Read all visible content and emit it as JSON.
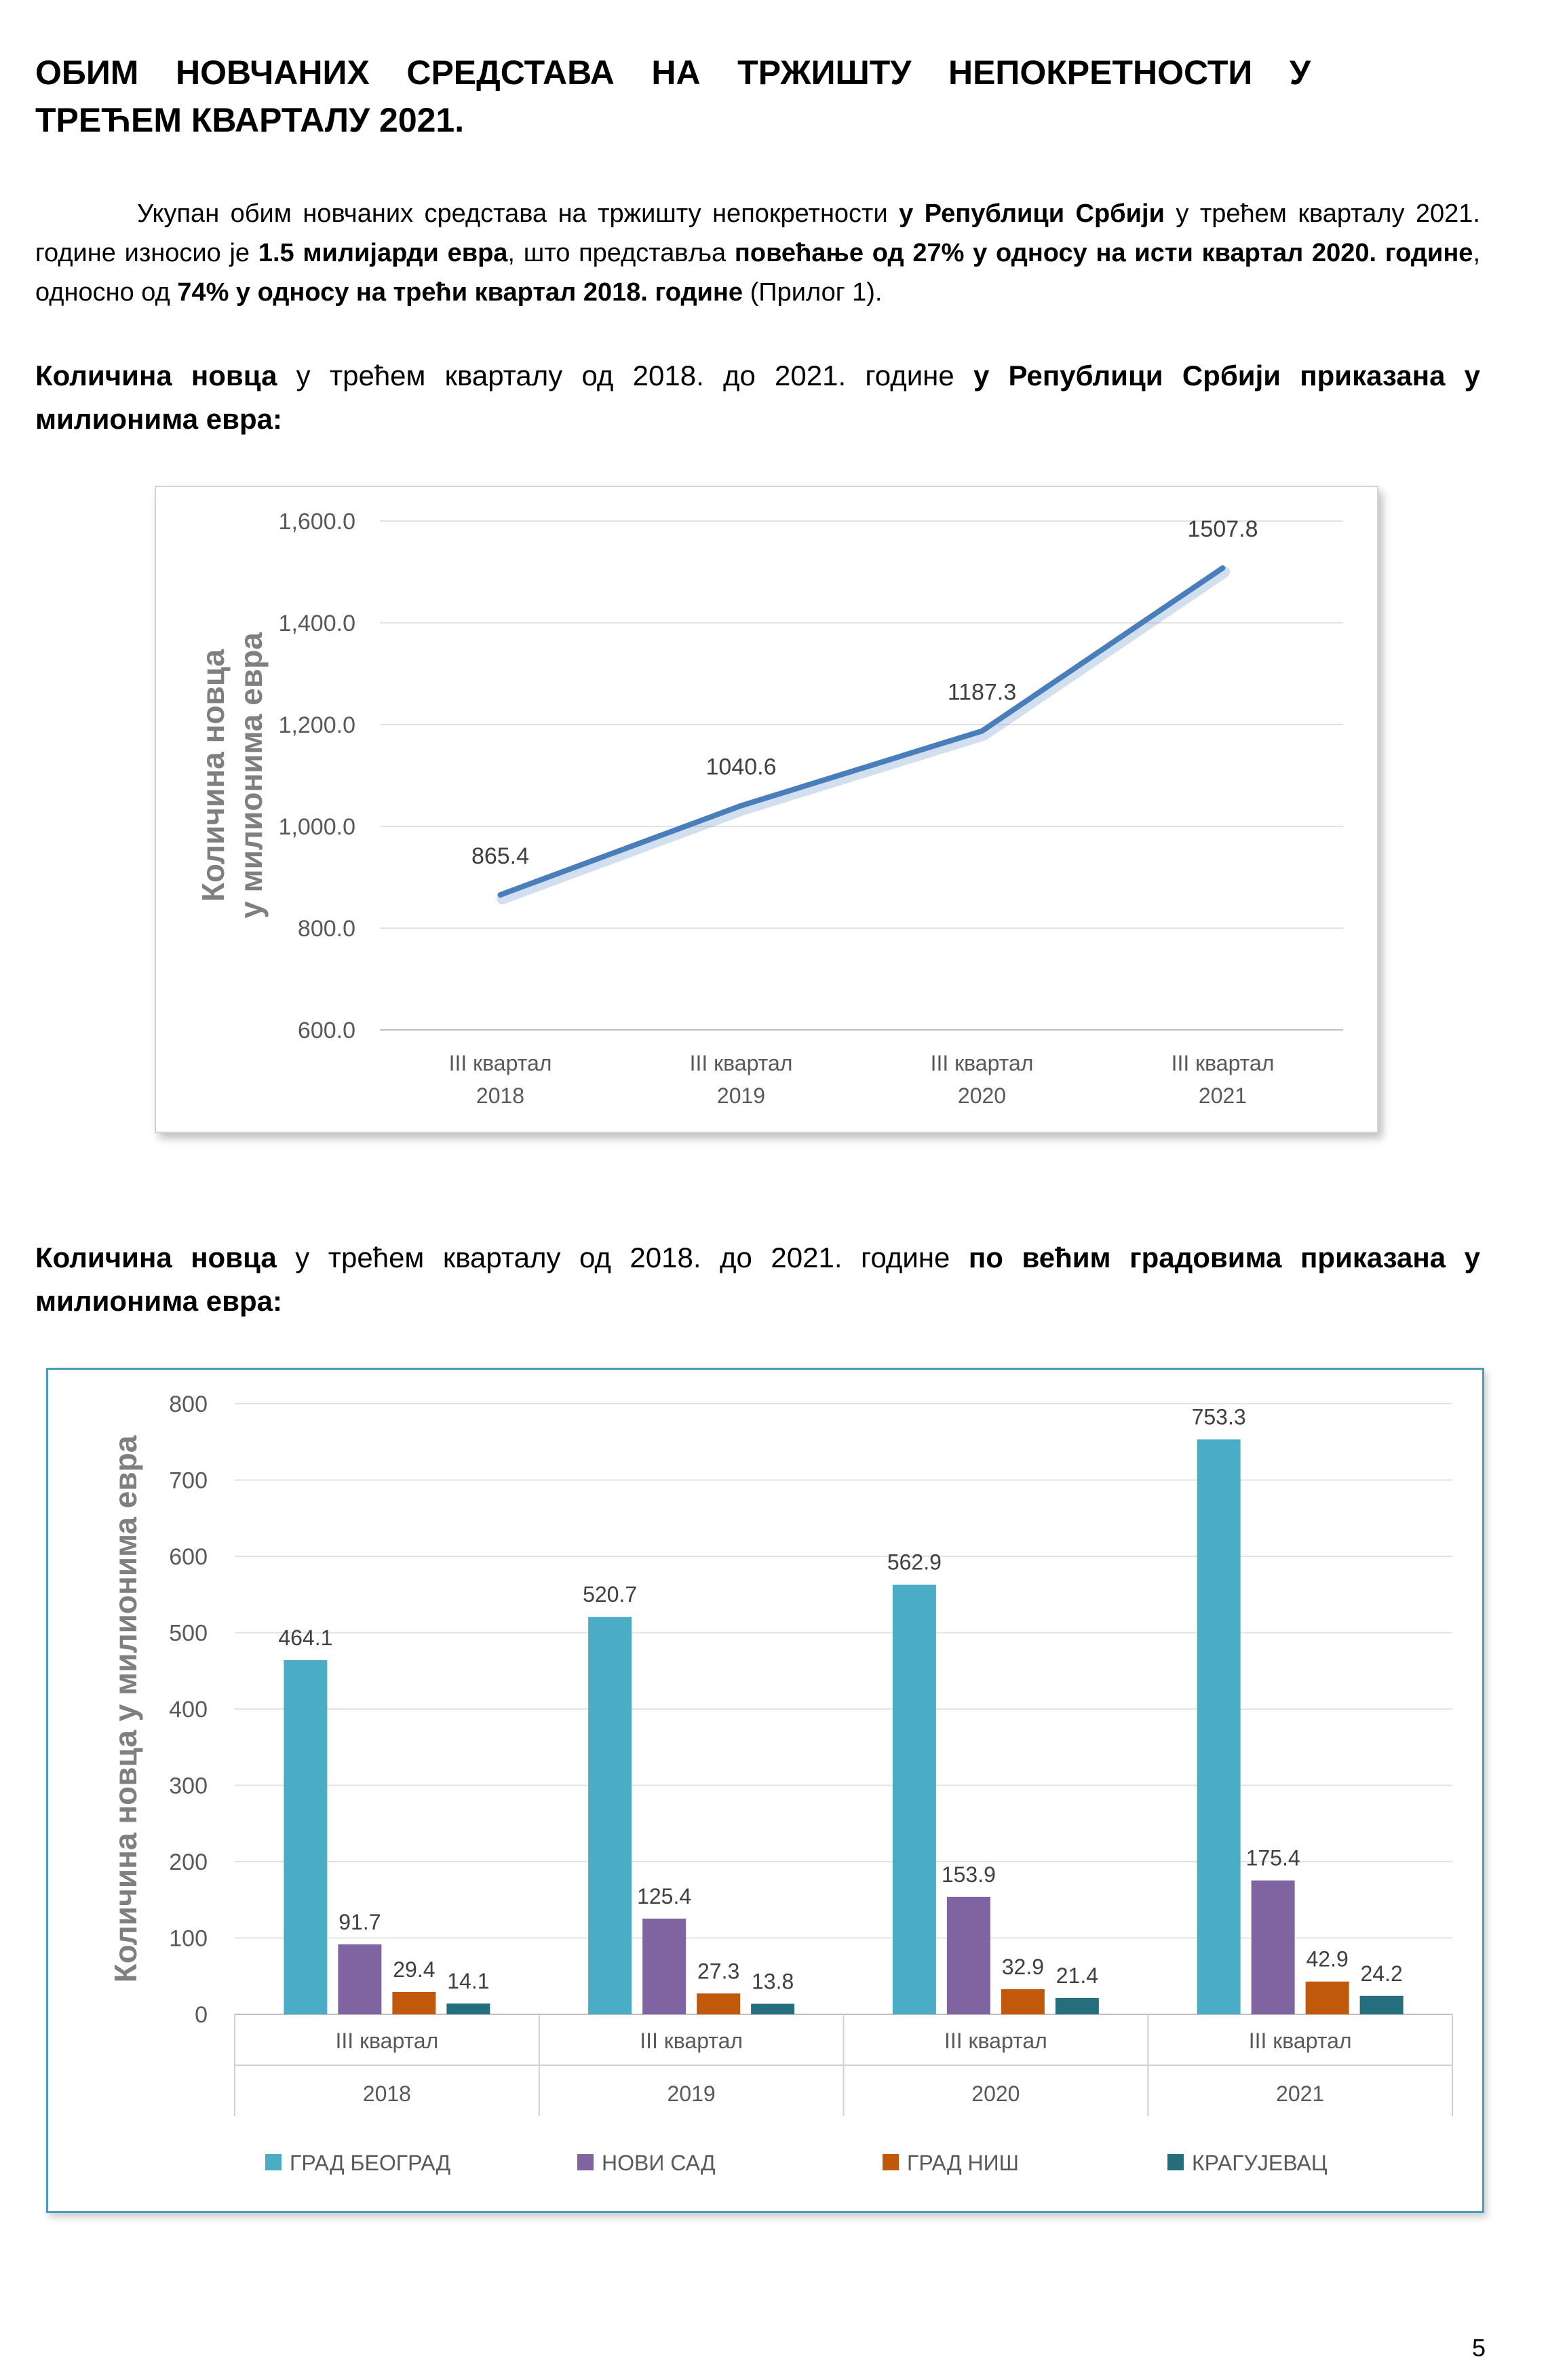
{
  "heading": {
    "line1": "ОБИМ НОВЧАНИХ СРЕДСТАВА НА ТРЖИШТУ НЕПОКРЕТНОСТИ У",
    "line2": "ТРЕЋЕМ КВАРТАЛУ 2021."
  },
  "paragraph1": {
    "t1": "Укупан обим новчаних средстава на тржишту непокретности ",
    "b1": "у Републици Србији",
    "t2": " у трећем кварталу 2021. године износио је ",
    "b2": "1.5 милијарди евра",
    "t3": ", што представља ",
    "b3": "повећање од 27% у односу на исти квартал 2020. године",
    "t4": ", односно од ",
    "b4": "74% у односу на трећи квартал 2018. године",
    "t5": " (Прилог 1)."
  },
  "paragraph2": {
    "b1": "Количина новца",
    "t1": " у трећем кварталу од 2018. до 2021. године ",
    "b2": "у Републици Србији приказана у милионима евра:"
  },
  "paragraph3": {
    "b1": "Количина новца",
    "t1": " у трећем кварталу од 2018. до 2021. године ",
    "b2": "по већим градовима приказана у милионима евра:"
  },
  "chart_data": [
    {
      "type": "line",
      "ylabel_line1": "Количина новца",
      "ylabel_line2": "у милионима евра",
      "categories": [
        [
          "III квартал",
          "2018"
        ],
        [
          "III квартал",
          "2019"
        ],
        [
          "III квартал",
          "2020"
        ],
        [
          "III квартал",
          "2021"
        ]
      ],
      "values": [
        865.4,
        1040.6,
        1187.3,
        1507.8
      ],
      "value_labels": [
        "865.4",
        "1040.6",
        "1187.3",
        "1507.8"
      ],
      "ylim": [
        600,
        1600
      ],
      "yticks": [
        "600.0",
        "800.0",
        "1,000.0",
        "1,200.0",
        "1,400.0",
        "1,600.0"
      ],
      "grid": true,
      "line_color": "#4a7ebb"
    },
    {
      "type": "bar",
      "ylabel": "Количина новца у милионима евра",
      "categories": [
        [
          "III квартал",
          "2018"
        ],
        [
          "III квартал",
          "2019"
        ],
        [
          "III квартал",
          "2020"
        ],
        [
          "III квартал",
          "2021"
        ]
      ],
      "series": [
        {
          "name": "ГРАД БЕОГРАД",
          "color": "#4bacc6",
          "values": [
            464.1,
            520.7,
            562.9,
            753.3
          ]
        },
        {
          "name": "НОВИ САД",
          "color": "#8064a2",
          "values": [
            91.7,
            125.4,
            153.9,
            175.4
          ]
        },
        {
          "name": "ГРАД НИШ",
          "color": "#c0590b",
          "values": [
            29.4,
            27.3,
            32.9,
            42.9
          ]
        },
        {
          "name": "КРАГУЈЕВАЦ",
          "color": "#246e7d",
          "values": [
            14.1,
            13.8,
            21.4,
            24.2
          ]
        }
      ],
      "ylim": [
        0,
        800
      ],
      "yticks": [
        "0",
        "100",
        "200",
        "300",
        "400",
        "500",
        "600",
        "700",
        "800"
      ],
      "grid": true,
      "legend_position": "bottom"
    }
  ],
  "page_number": "5"
}
